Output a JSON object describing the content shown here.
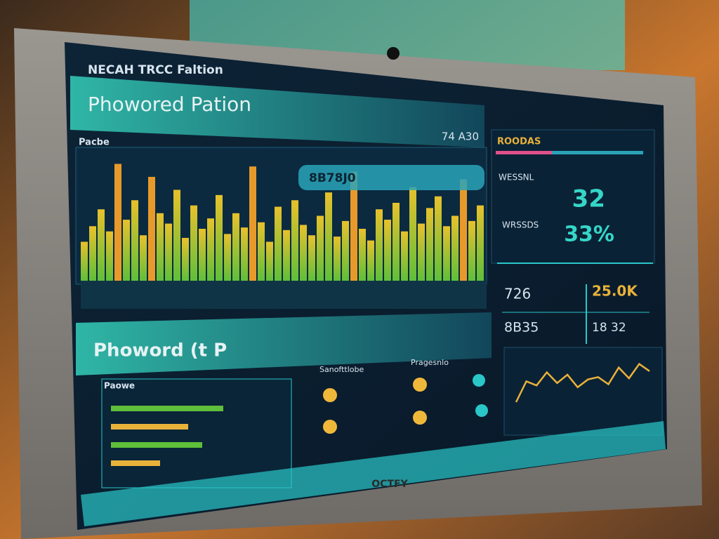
{
  "header": {
    "brand": "NECAH TRCC Faltion",
    "title": "Phowored Pation"
  },
  "main_chart": {
    "label": "Pacbe",
    "value_label": "74 A30",
    "tooltip": "8B78J0",
    "values": [
      30,
      42,
      55,
      38,
      90,
      47,
      62,
      35,
      80,
      52,
      44,
      70,
      33,
      58,
      40,
      48,
      66,
      36,
      52,
      41,
      88,
      45,
      30,
      57,
      39,
      62,
      43,
      35,
      50,
      68,
      34,
      46,
      84,
      40,
      31,
      55,
      47,
      60,
      38,
      72,
      44,
      56,
      65,
      42,
      50,
      78,
      46,
      58
    ]
  },
  "stats": {
    "title": "ROODAS",
    "rows": [
      {
        "label": "WESSNL",
        "value": "32"
      },
      {
        "label": "WRSSDS",
        "value": "33%"
      }
    ]
  },
  "tiles": [
    "726",
    "25.0K",
    "8B35",
    "18 32"
  ],
  "trend": {
    "values": [
      20,
      55,
      48,
      70,
      52,
      66,
      45,
      58,
      62,
      50,
      78,
      60,
      84,
      72
    ]
  },
  "section": {
    "title": "Phoword (t P",
    "list_title": "Paowe",
    "list_values": [
      80,
      55,
      65,
      35
    ],
    "indicators_title": "Sanofttlobe",
    "status_title": "Pragesnlo"
  },
  "footer": {
    "brand": "OCTFY"
  }
}
